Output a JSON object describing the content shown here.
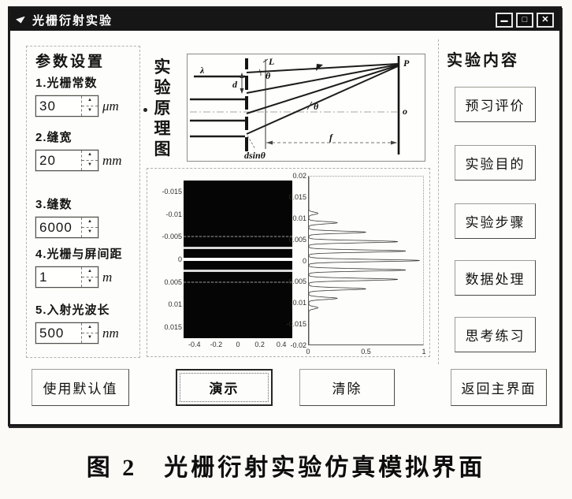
{
  "window": {
    "title": "光栅衍射实验",
    "controls": {
      "minimize": "▁",
      "maximize": "□",
      "close": "✕"
    }
  },
  "icons": {
    "spinner_up": "▲",
    "spinner_down": "▼"
  },
  "params_panel": {
    "title": "参数设置",
    "fields": [
      {
        "label": "1.光栅常数",
        "value": "30",
        "unit": "μm"
      },
      {
        "label": "2.缝宽",
        "value": "20",
        "unit": "mm"
      },
      {
        "label": "3.缝数",
        "value": "6000",
        "unit": ""
      },
      {
        "label": "4.光栅与屏间距",
        "value": "1",
        "unit": "m"
      },
      {
        "label": "5.入射光波长",
        "value": "500",
        "unit": "nm"
      }
    ]
  },
  "principle": {
    "side_label": "实验原理图",
    "labels": {
      "lambda": "λ",
      "d": "d",
      "L": "L",
      "theta1": "θ",
      "theta2": "θ",
      "dsin": "dsinθ",
      "f": "f",
      "P": "P",
      "o": "o"
    }
  },
  "content_panel": {
    "title": "实验内容",
    "buttons": [
      {
        "label": "预习评价"
      },
      {
        "label": "实验目的"
      },
      {
        "label": "实验步骤"
      },
      {
        "label": "数据处理"
      },
      {
        "label": "思考练习"
      }
    ]
  },
  "actions": {
    "use_defaults": "使用默认值",
    "demo": "演示",
    "clear": "清除",
    "back": "返回主界面"
  },
  "caption": "图 2　光栅衍射实验仿真模拟界面",
  "chart_data": [
    {
      "type": "heatmap",
      "title": "diffraction fringe pattern",
      "xlim": [
        -0.5,
        0.5
      ],
      "ylim": [
        -0.0175,
        0.0175
      ],
      "ydir": "down",
      "xticks": [
        "-0.4",
        "-0.2",
        "0",
        "0.2",
        "0.4"
      ],
      "yticks": [
        "-0.015",
        "-0.01",
        "-0.005",
        "0",
        "0.005",
        "0.01",
        "0.015"
      ],
      "background": "#050505",
      "stripes": [
        {
          "y": -0.005,
          "intensity": 0.35
        },
        {
          "y": -0.0025,
          "intensity": 0.85
        },
        {
          "y": 0,
          "intensity": 1.0
        },
        {
          "y": 0.0025,
          "intensity": 0.85
        },
        {
          "y": 0.005,
          "intensity": 0.35
        }
      ]
    },
    {
      "type": "line",
      "title": "intensity profile (intensity vs screen position)",
      "xlim": [
        0,
        1
      ],
      "ylim": [
        -0.02,
        0.02
      ],
      "ydir": "up",
      "xticks": [
        "0",
        "0.5",
        "1"
      ],
      "yticks": [
        "0.02",
        "0.015",
        "0.01",
        "0.005",
        "0",
        "-0.005",
        "-0.01",
        "-0.015",
        "-0.02"
      ],
      "peak_width": 0.00038,
      "peaks": [
        {
          "pos": 0,
          "amp": 0.97
        },
        {
          "pos": 0.00225,
          "amp": 0.85
        },
        {
          "pos": -0.00225,
          "amp": 0.85
        },
        {
          "pos": 0.0045,
          "amp": 0.78
        },
        {
          "pos": -0.0045,
          "amp": 0.78
        },
        {
          "pos": 0.00675,
          "amp": 0.5
        },
        {
          "pos": -0.00675,
          "amp": 0.5
        },
        {
          "pos": 0.009,
          "amp": 0.25
        },
        {
          "pos": -0.009,
          "amp": 0.25
        },
        {
          "pos": 0.01125,
          "amp": 0.08
        },
        {
          "pos": -0.01125,
          "amp": 0.08
        }
      ]
    }
  ]
}
